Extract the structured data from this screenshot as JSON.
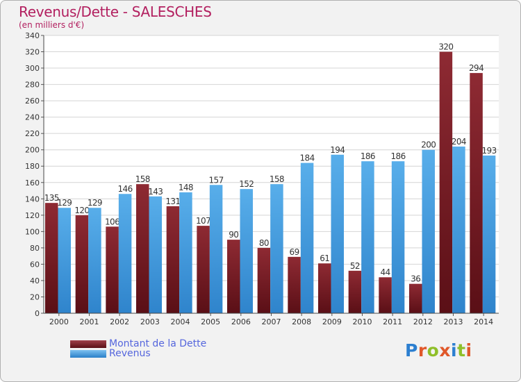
{
  "title": "Revenus/Dette - SALESCHES",
  "subtitle": "(en milliers d'€)",
  "chart_data": {
    "type": "bar",
    "categories": [
      "2000",
      "2001",
      "2002",
      "2003",
      "2004",
      "2005",
      "2006",
      "2007",
      "2008",
      "2009",
      "2010",
      "2011",
      "2012",
      "2013",
      "2014"
    ],
    "series": [
      {
        "name": "Montant de la Dette",
        "color": "#7b1c24",
        "values": [
          135,
          120,
          106,
          158,
          131,
          107,
          90,
          80,
          69,
          61,
          52,
          44,
          36,
          320,
          294
        ]
      },
      {
        "name": "Revenus",
        "color": "#4ca3e3",
        "values": [
          129,
          129,
          146,
          143,
          148,
          157,
          152,
          158,
          184,
          194,
          186,
          186,
          200,
          204,
          193
        ]
      }
    ],
    "ylim": [
      0,
      340
    ],
    "yticks": [
      0,
      20,
      40,
      60,
      80,
      100,
      120,
      140,
      160,
      180,
      200,
      220,
      240,
      260,
      280,
      300,
      320,
      340
    ],
    "grid": true,
    "legend_position": "bottom-left"
  },
  "legend": [
    {
      "label": "Montant de la Dette",
      "color": "#7b1c24"
    },
    {
      "label": "Revenus",
      "color": "#4ca3e3"
    }
  ],
  "logo": {
    "text": "Proxiti",
    "colors": [
      "#2c7fd0",
      "#e0582a",
      "#8fbf2a",
      "#e0582a",
      "#2c7fd0",
      "#8fbf2a",
      "#e0582a"
    ]
  }
}
